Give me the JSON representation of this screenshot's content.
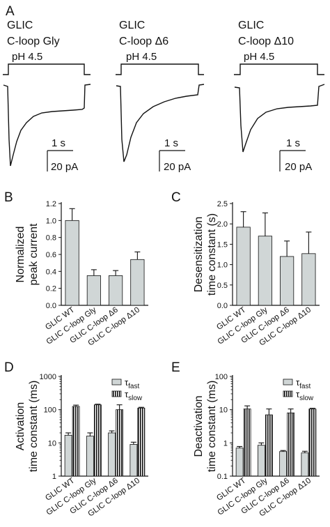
{
  "panel_labels": [
    "A",
    "B",
    "C",
    "D",
    "E"
  ],
  "traces": [
    {
      "line1": "GLIC",
      "line2": "C-loop Gly",
      "ph": "pH 4.5",
      "time_scale": "1 s",
      "current_scale": "20 pA"
    },
    {
      "line1": "GLIC",
      "line2": "C-loop Δ6",
      "ph": "pH 4.5",
      "time_scale": "1 s",
      "current_scale": "20 pA"
    },
    {
      "line1": "GLIC",
      "line2": "C-loop Δ10",
      "ph": "pH 4.5",
      "time_scale": "1 s",
      "current_scale": "20 pA"
    }
  ],
  "colors": {
    "bar_fill": "#d0d6d6",
    "ink": "#111111"
  },
  "chart_data": [
    {
      "panel": "B",
      "type": "bar",
      "categories": [
        "GLIC WT",
        "GLIC C-loop Gly",
        "GLIC C-loop Δ6",
        "GLIC C-loop Δ10"
      ],
      "values": [
        1.0,
        0.35,
        0.35,
        0.54
      ],
      "errors": [
        0.14,
        0.07,
        0.06,
        0.09
      ],
      "ylabel_lines": [
        "Normalized",
        "peak current"
      ],
      "ylim": [
        0,
        1.2
      ],
      "yticks": [
        "0.0",
        "0.2",
        "0.4",
        "0.6",
        "0.8",
        "1.0",
        "1.2"
      ],
      "scale": "linear"
    },
    {
      "panel": "C",
      "type": "bar",
      "categories": [
        "GLIC WT",
        "GLIC C-loop Gly",
        "GLIC C-loop Δ6",
        "GLIC C-loop Δ10"
      ],
      "values": [
        1.92,
        1.7,
        1.2,
        1.27
      ],
      "errors": [
        0.38,
        0.57,
        0.38,
        0.53
      ],
      "ylabel_lines": [
        "Desensitization",
        "time constant (s)"
      ],
      "ylim": [
        0,
        2.5
      ],
      "yticks": [
        "0.0",
        "0.5",
        "1.0",
        "1.5",
        "2.0",
        "2.5"
      ],
      "scale": "linear"
    },
    {
      "panel": "D",
      "type": "bar",
      "scale": "log",
      "categories": [
        "GLIC WT",
        "GLIC C-loop Gly",
        "GLIC C-loop Δ6",
        "GLIC C-loop Δ10"
      ],
      "series": [
        {
          "name": "fast",
          "values": [
            17,
            16,
            20,
            9
          ],
          "errors": [
            3,
            4,
            3,
            1.5
          ]
        },
        {
          "name": "slow",
          "values": [
            125,
            140,
            100,
            112
          ],
          "errors": [
            12,
            6,
            40,
            6
          ]
        }
      ],
      "ylabel_lines": [
        "Activation",
        "time constant (ms)"
      ],
      "ylim": [
        1,
        1000
      ],
      "yticks": [
        "1",
        "10",
        "100",
        "1000"
      ],
      "legend_position": "top-right"
    },
    {
      "panel": "E",
      "type": "bar",
      "scale": "log",
      "categories": [
        "GLIC WT",
        "GLIC C-loop Gly",
        "GLIC C-loop Δ6",
        "GLIC C-loop Δ10"
      ],
      "series": [
        {
          "name": "fast",
          "values": [
            0.7,
            0.85,
            0.55,
            0.5
          ],
          "errors": [
            0.08,
            0.15,
            0.04,
            0.06
          ]
        },
        {
          "name": "slow",
          "values": [
            10.5,
            7,
            8,
            10.5
          ],
          "errors": [
            2.5,
            3.5,
            2.5,
            0.5
          ]
        }
      ],
      "ylabel_lines": [
        "Deactivation",
        "time constant (ms)"
      ],
      "ylim": [
        0.1,
        100
      ],
      "yticks": [
        "0.1",
        "1",
        "10",
        "100"
      ],
      "legend_position": "top-right"
    }
  ]
}
